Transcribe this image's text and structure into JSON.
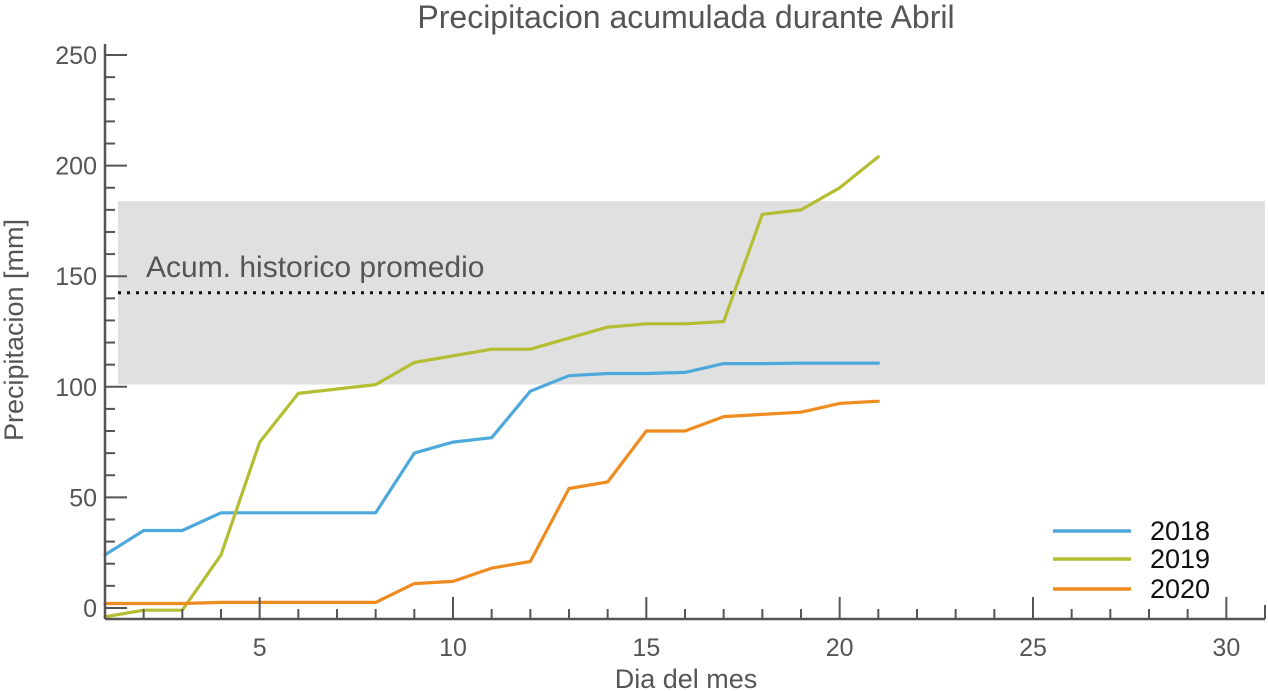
{
  "chart_data": {
    "type": "line",
    "title": "Precipitacion acumulada durante Abril",
    "xlabel": "Dia del mes",
    "ylabel": "Precipitacion [mm]",
    "xlim": [
      1,
      31
    ],
    "ylim": [
      -5,
      255
    ],
    "x_ticks": [
      5,
      10,
      15,
      20,
      25,
      30
    ],
    "y_ticks": [
      0,
      50,
      100,
      150,
      200,
      250
    ],
    "grid": false,
    "legend_position": "bottom-right",
    "band": {
      "label": "Acum. historico promedio",
      "lower": 101,
      "upper": 184,
      "mean": 142.5,
      "color": "#e0e0e0"
    },
    "x": [
      1,
      2,
      3,
      4,
      5,
      6,
      7,
      8,
      9,
      10,
      11,
      12,
      13,
      14,
      15,
      16,
      17,
      18,
      19,
      20,
      21
    ],
    "series": [
      {
        "name": "2018",
        "color": "#4ea8dc",
        "values": [
          24,
          35,
          35,
          43,
          43,
          43,
          43,
          43,
          70,
          75,
          77,
          98,
          105,
          106,
          106,
          106.5,
          110.5,
          110.5,
          110.7,
          110.7,
          110.7
        ]
      },
      {
        "name": "2019",
        "color": "#b5bd33",
        "values": [
          -4,
          -1,
          -1,
          24,
          75,
          97,
          99,
          101,
          111,
          114,
          117,
          117,
          122,
          127,
          128.5,
          128.5,
          129.5,
          178,
          180,
          190,
          204
        ]
      },
      {
        "name": "2020",
        "color": "#ef8c20",
        "values": [
          2,
          2,
          2,
          2.5,
          2.5,
          2.5,
          2.5,
          2.5,
          11,
          12,
          18,
          21,
          54,
          57,
          80,
          80,
          86.5,
          87.5,
          88.5,
          92.5,
          93.5
        ]
      }
    ]
  }
}
